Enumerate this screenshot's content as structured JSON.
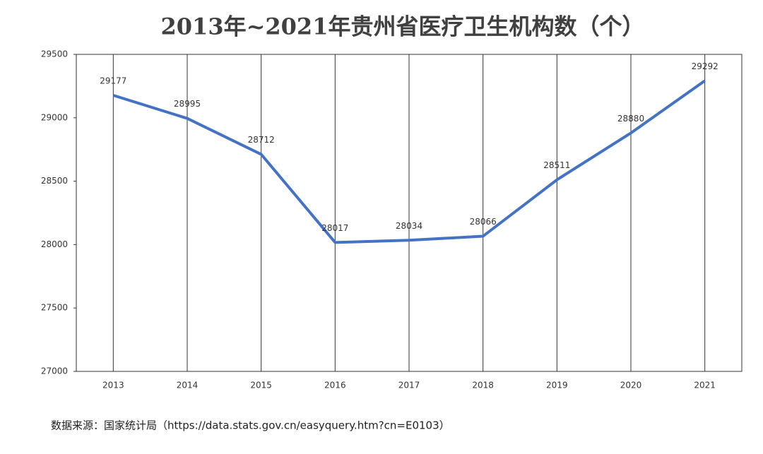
{
  "chart_data": {
    "type": "line",
    "title": "2013年~2021年贵州省医疗卫生机构数（个）",
    "categories": [
      "2013",
      "2014",
      "2015",
      "2016",
      "2017",
      "2018",
      "2019",
      "2020",
      "2021"
    ],
    "series": [
      {
        "name": "贵州省医疗卫生机构数",
        "color": "#4472c4",
        "values": [
          29177,
          28995,
          28712,
          28017,
          28034,
          28066,
          28511,
          28880,
          29292
        ]
      }
    ],
    "ylim": [
      27000,
      29500
    ],
    "yticks": [
      27000,
      27500,
      28000,
      28500,
      29000,
      29500
    ],
    "grid": true,
    "source": "数据来源：国家统计局（https://data.stats.gov.cn/easyquery.htm?cn=E0103）"
  }
}
